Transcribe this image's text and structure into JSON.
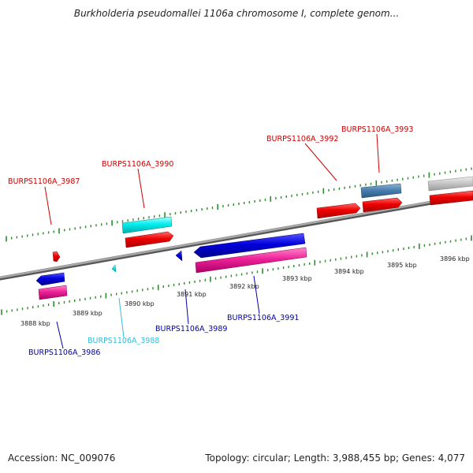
{
  "title": "Burkholderia pseudomallei 1106a chromosome I, complete genom...",
  "footer": {
    "accession": "Accession: NC_009076",
    "summary": "Topology: circular; Length: 3,988,455 bp; Genes: 4,077"
  },
  "colors": {
    "backbone": "#8a8a8a",
    "tick": "#2e8b2e",
    "label_red": "#cc0000",
    "label_blue": "#0000aa",
    "label_cyan": "#33bbdd"
  },
  "scale_labels": [
    "3888 kbp",
    "3889 kbp",
    "3890 kbp",
    "3891 kbp",
    "3892 kbp",
    "3893 kbp",
    "3894 kbp",
    "3895 kbp",
    "3896 kbp"
  ],
  "genes": [
    {
      "name": "BURPS1106A_3987",
      "color": "red"
    },
    {
      "name": "BURPS1106A_3990",
      "color": "red"
    },
    {
      "name": "BURPS1106A_3992",
      "color": "red"
    },
    {
      "name": "BURPS1106A_3993",
      "color": "red"
    },
    {
      "name": "BURPS1106A_3986",
      "color": "blue"
    },
    {
      "name": "BURPS1106A_3988",
      "color": "cyan"
    },
    {
      "name": "BURPS1106A_3989",
      "color": "blue"
    },
    {
      "name": "BURPS1106A_3991",
      "color": "blue"
    }
  ]
}
